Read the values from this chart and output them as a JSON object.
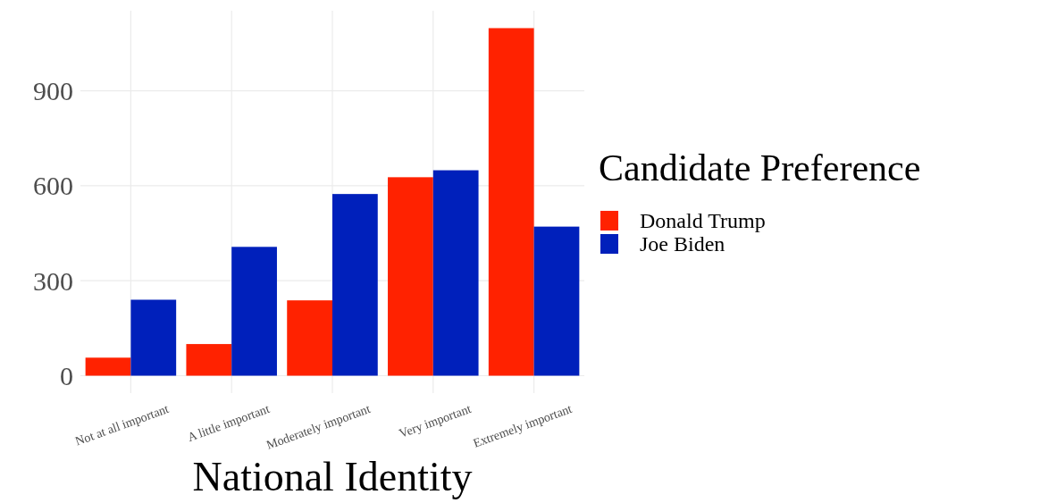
{
  "chart_data": {
    "type": "bar",
    "xlabel": "National Identity",
    "legend_title": "Candidate Preference",
    "categories": [
      "Not at all important",
      "A little important",
      "Moderately important",
      "Very important",
      "Extremely important"
    ],
    "series": [
      {
        "name": "Donald Trump",
        "color": "#ff2200",
        "values": [
          57,
          100,
          238,
          627,
          1098
        ]
      },
      {
        "name": "Joe Biden",
        "color": "#0020bb",
        "values": [
          240,
          407,
          574,
          649,
          471
        ]
      }
    ],
    "ylim": [
      -55,
      1153
    ],
    "yticks": [
      0,
      300,
      600,
      900
    ],
    "grid": true,
    "legend": "right"
  }
}
